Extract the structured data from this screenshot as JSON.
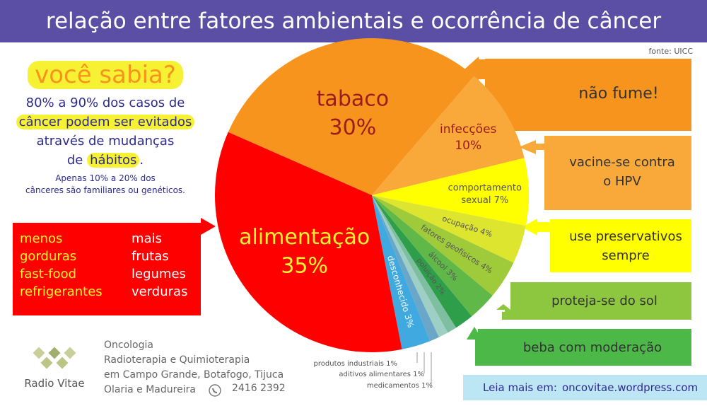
{
  "header": {
    "title": "relação entre fatores ambientais e ocorrência de câncer"
  },
  "source": "fonte: UICC",
  "info": {
    "headline": "você sabia?",
    "fact_line1": "80% a 90% dos casos de",
    "fact_line2": "câncer podem ser evitados",
    "fact_line3": "através de mudanças",
    "fact_line4_pre": "de ",
    "fact_line4_hl": "hábitos",
    "fact_line4_post": ".",
    "small_line1": "Apenas 10% a 20% dos",
    "small_line2": "cânceres são familiares ou genéticos."
  },
  "diet": {
    "less": [
      "menos",
      "gorduras",
      "fast-food",
      "refrigerantes"
    ],
    "more": [
      "mais",
      "frutas",
      "legumes",
      "verduras"
    ]
  },
  "advice": {
    "tabaco": "não fume!",
    "infeccoes_1": "vacine-se contra",
    "infeccoes_2": "o HPV",
    "sexual_1": "use preservativos",
    "sexual_2": "sempre",
    "sol": "proteja-se do sol",
    "alcool": "beba com moderação"
  },
  "footer": {
    "logo": "Radio Vitae",
    "clinic_1": "Oncologia",
    "clinic_2": "Radioterapia e Quimioterapia",
    "clinic_3": "em Campo Grande, Botafogo, Tijuca",
    "clinic_4": "Olaria e Madureira",
    "phone": "2416 2392",
    "leia_label": "Leia mais em:",
    "leia_url": "oncovitae.wordpress.com"
  },
  "colors": {
    "header": "#5b4ea5",
    "orange": "#f7941d",
    "red": "#ff0000",
    "yellow": "#f6f233",
    "green": "#4cb848",
    "light_blue": "#bde6f4"
  },
  "chart_data": {
    "type": "pie",
    "title": "relação entre fatores ambientais e ocorrência de câncer",
    "slices": [
      {
        "name": "tabaco",
        "label": "tabaco",
        "display": "30%",
        "value": 30,
        "color": "#f7941d",
        "text_color": "#9b1c1c",
        "font": 30
      },
      {
        "name": "infecções",
        "label": "infecções",
        "display": "10%",
        "value": 10,
        "color": "#f9a83a",
        "text_color": "#9b1c1c",
        "font": 17
      },
      {
        "name": "comportamento sexual",
        "label": "comportamento",
        "display": "sexual 7%",
        "value": 7,
        "color": "#ffff00",
        "text_color": "#555555",
        "font": 13
      },
      {
        "name": "ocupação",
        "label": "ocupação 4%",
        "display": "",
        "value": 4,
        "color": "#dde52e",
        "text_color": "#555555",
        "font": 11
      },
      {
        "name": "fatores geofísicos",
        "label": "fatores geofísicos 4%",
        "display": "",
        "value": 4,
        "color": "#9fcb3b",
        "text_color": "#555555",
        "font": 11
      },
      {
        "name": "álcool",
        "label": "álcool 3%",
        "display": "",
        "value": 3,
        "color": "#5fb847",
        "text_color": "#555555",
        "font": 11
      },
      {
        "name": "poluição",
        "label": "poluição 2%",
        "display": "",
        "value": 2,
        "color": "#2e9e4a",
        "text_color": "#555555",
        "font": 10
      },
      {
        "name": "medicamentos",
        "label": "",
        "display": "",
        "value": 1,
        "color": "#7dbfa0",
        "text_color": "#555555",
        "font": 10
      },
      {
        "name": "aditivos alimentares",
        "label": "",
        "display": "",
        "value": 1,
        "color": "#9ecfc4",
        "text_color": "#555555",
        "font": 10
      },
      {
        "name": "produtos industriais",
        "label": "",
        "display": "",
        "value": 1,
        "color": "#6aa6c8",
        "text_color": "#555555",
        "font": 10
      },
      {
        "name": "desconhecido",
        "label": "desconhecido 3%",
        "display": "",
        "value": 3,
        "color": "#3fa9e0",
        "text_color": "#ffffff",
        "font": 12
      },
      {
        "name": "alimentação",
        "label": "alimentação",
        "display": "35%",
        "value": 35,
        "color": "#ff0000",
        "text_color": "#f6f233",
        "font": 30
      }
    ],
    "outside_labels": [
      "produtos industriais 1%",
      "aditivos alimentares 1%",
      "medicamentos 1%"
    ]
  }
}
